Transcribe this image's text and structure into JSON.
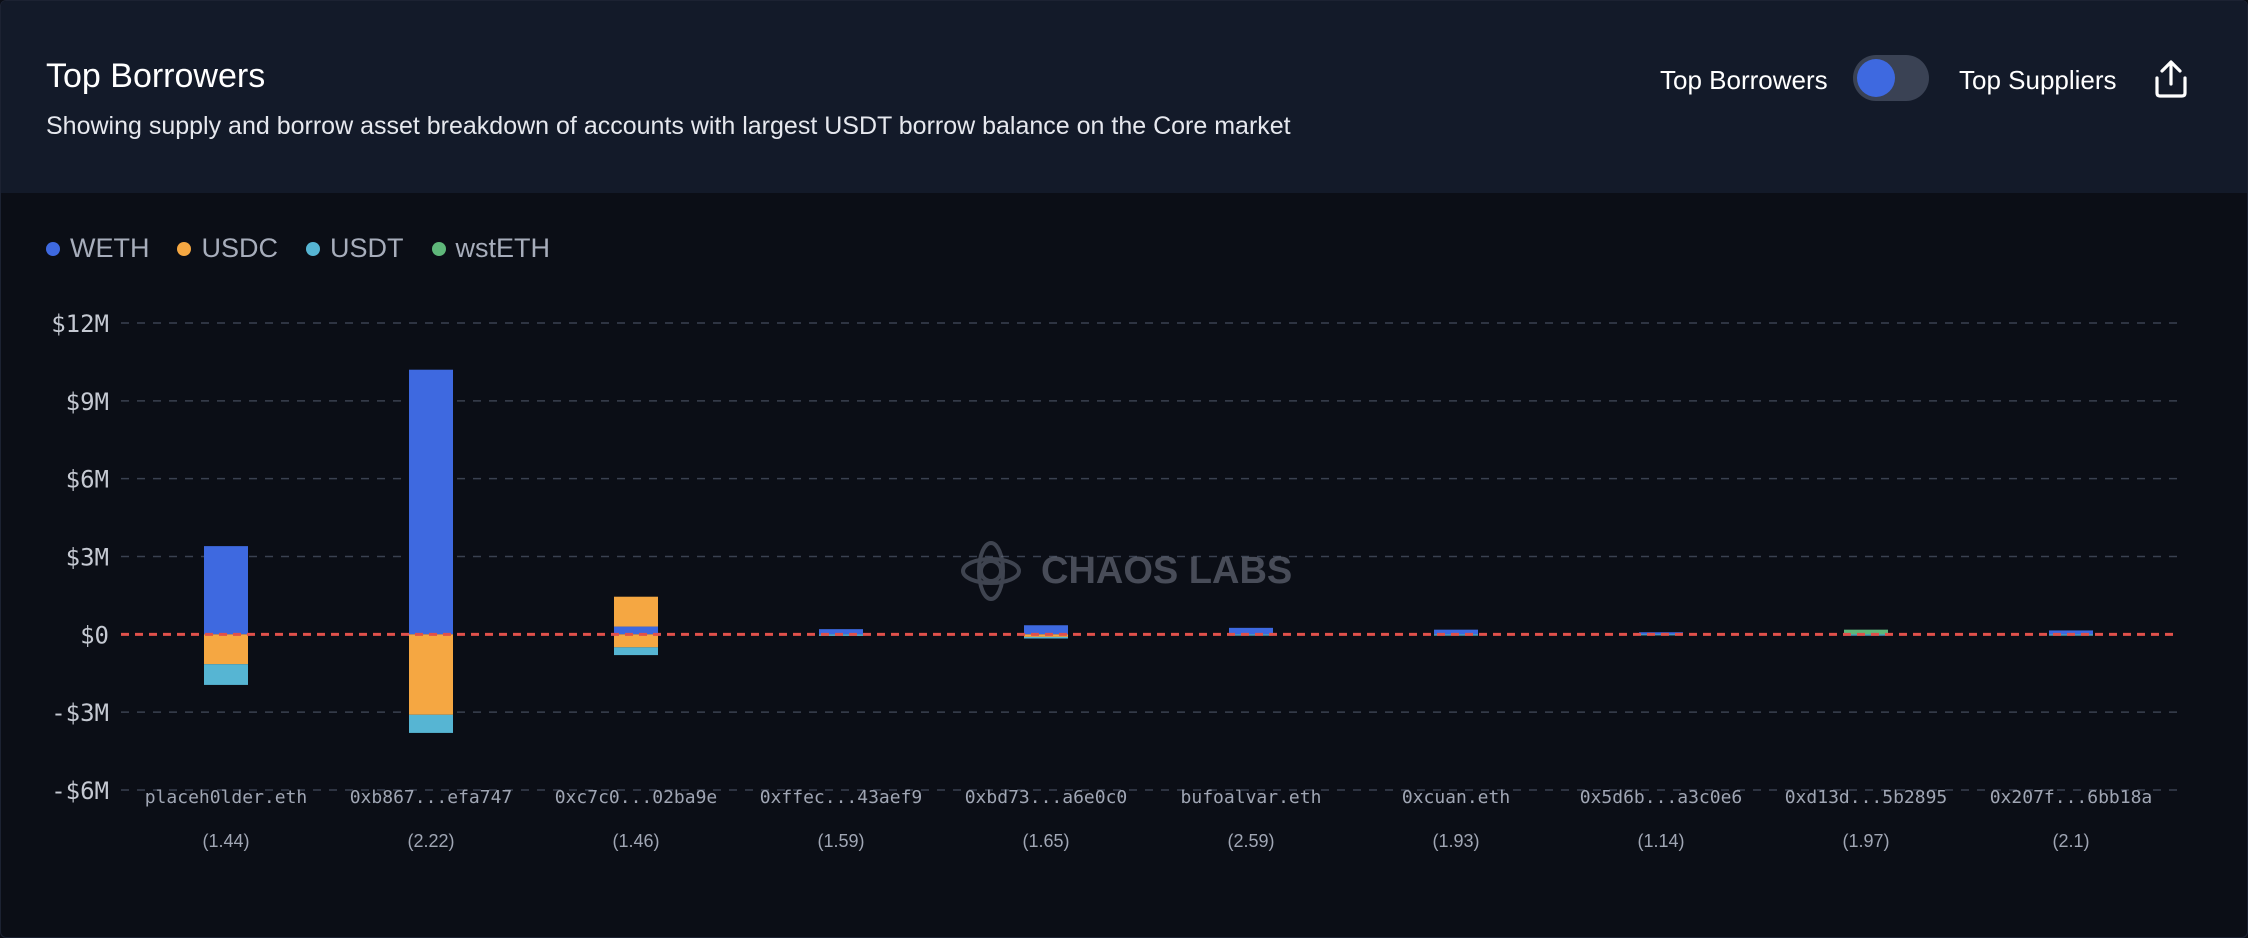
{
  "header": {
    "title": "Top Borrowers",
    "subtitle": "Showing supply and borrow asset breakdown of accounts with largest USDT borrow balance on the Core market",
    "toggle_left_label": "Top Borrowers",
    "toggle_right_label": "Top Suppliers"
  },
  "watermark": {
    "text": "CHAOS LABS"
  },
  "colors": {
    "WETH": "#3e69e0",
    "USDC": "#f5a742",
    "USDT": "#56b5d3",
    "wstETH": "#5fb77a",
    "zero_line": "#e0514b",
    "grid": "#3a4150",
    "tick_text": "#c5c9d2",
    "category_text": "#a0a6b4"
  },
  "chart_data": {
    "type": "bar",
    "stacked": true,
    "title": "Top Borrowers",
    "ylim": [
      -6000000,
      12000000
    ],
    "yticks": [
      -6000000,
      -3000000,
      0,
      3000000,
      6000000,
      9000000,
      12000000
    ],
    "ytick_labels": [
      "-$6M",
      "-$3M",
      "$0",
      "$3M",
      "$6M",
      "$9M",
      "$12M"
    ],
    "grid": true,
    "legend_position": "top-left",
    "categories": [
      "placeh0lder.eth",
      "0xb867...efa747",
      "0xc7c0...02ba9e",
      "0xffec...43aef9",
      "0xbd73...a6e0c0",
      "bufoalvar.eth",
      "0xcuan.eth",
      "0x5d6b...a3c0e6",
      "0xd13d...5b2895",
      "0x207f...6bb18a"
    ],
    "category_sublabels": [
      "(1.44)",
      "(2.22)",
      "(1.46)",
      "(1.59)",
      "(1.65)",
      "(2.59)",
      "(1.93)",
      "(1.14)",
      "(1.97)",
      "(2.1)"
    ],
    "series": [
      {
        "name": "WETH",
        "supply": [
          3400000,
          10200000,
          300000,
          200000,
          350000,
          250000,
          180000,
          80000,
          0,
          150000
        ],
        "borrow": [
          0,
          0,
          0,
          0,
          0,
          0,
          0,
          0,
          0,
          0
        ]
      },
      {
        "name": "USDC",
        "supply": [
          0,
          0,
          1150000,
          0,
          0,
          0,
          0,
          0,
          0,
          0
        ],
        "borrow": [
          -1150000,
          -3100000,
          -500000,
          0,
          -100000,
          0,
          0,
          0,
          0,
          0
        ]
      },
      {
        "name": "USDT",
        "supply": [
          0,
          0,
          0,
          0,
          0,
          0,
          0,
          0,
          0,
          0
        ],
        "borrow": [
          -800000,
          -700000,
          -300000,
          -60000,
          -60000,
          -50000,
          -50000,
          -40000,
          -50000,
          -50000
        ]
      },
      {
        "name": "wstETH",
        "supply": [
          0,
          0,
          0,
          0,
          0,
          0,
          0,
          0,
          180000,
          0
        ],
        "borrow": [
          0,
          0,
          0,
          0,
          0,
          0,
          0,
          0,
          0,
          0
        ]
      }
    ]
  }
}
